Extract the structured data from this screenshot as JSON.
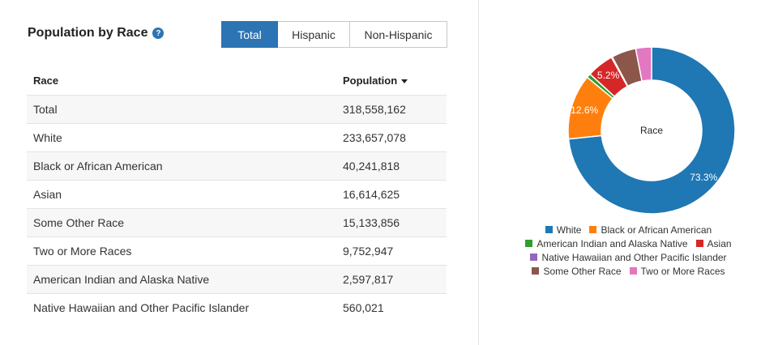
{
  "title": "Population by Race",
  "help_icon": "question-circle-icon",
  "tabs": [
    {
      "label": "Total",
      "active": true
    },
    {
      "label": "Hispanic",
      "active": false
    },
    {
      "label": "Non-Hispanic",
      "active": false
    }
  ],
  "table": {
    "headers": {
      "race": "Race",
      "population": "Population"
    },
    "rows": [
      {
        "race": "Total",
        "population": "318,558,162"
      },
      {
        "race": "White",
        "population": "233,657,078"
      },
      {
        "race": "Black or African American",
        "population": "40,241,818"
      },
      {
        "race": "Asian",
        "population": "16,614,625"
      },
      {
        "race": "Some Other Race",
        "population": "15,133,856"
      },
      {
        "race": "Two or More Races",
        "population": "9,752,947"
      },
      {
        "race": "American Indian and Alaska Native",
        "population": "2,597,817"
      },
      {
        "race": "Native Hawaiian and Other Pacific Islander",
        "population": "560,021"
      }
    ]
  },
  "chart_data": {
    "type": "pie",
    "donut": true,
    "center_label": "Race",
    "slices": [
      {
        "name": "White",
        "value": 233657078,
        "color": "#1f77b4",
        "label": "73.3%"
      },
      {
        "name": "Black or African American",
        "value": 40241818,
        "color": "#ff7f0e",
        "label": "12.6%"
      },
      {
        "name": "American Indian and Alaska Native",
        "value": 2597817,
        "color": "#2ca02c",
        "label": ""
      },
      {
        "name": "Asian",
        "value": 16614625,
        "color": "#d62728",
        "label": "5.2%"
      },
      {
        "name": "Native Hawaiian and Other Pacific Islander",
        "value": 560021,
        "color": "#9467bd",
        "label": ""
      },
      {
        "name": "Some Other Race",
        "value": 15133856,
        "color": "#8c564b",
        "label": ""
      },
      {
        "name": "Two or More Races",
        "value": 9752947,
        "color": "#e377c2",
        "label": ""
      }
    ],
    "legend_placement": "bottom",
    "legend_rows": [
      [
        "White",
        "Black or African American"
      ],
      [
        "American Indian and Alaska Native",
        "Asian"
      ],
      [
        "Native Hawaiian and Other Pacific Islander"
      ],
      [
        "Some Other Race",
        "Two or More Races"
      ]
    ]
  }
}
